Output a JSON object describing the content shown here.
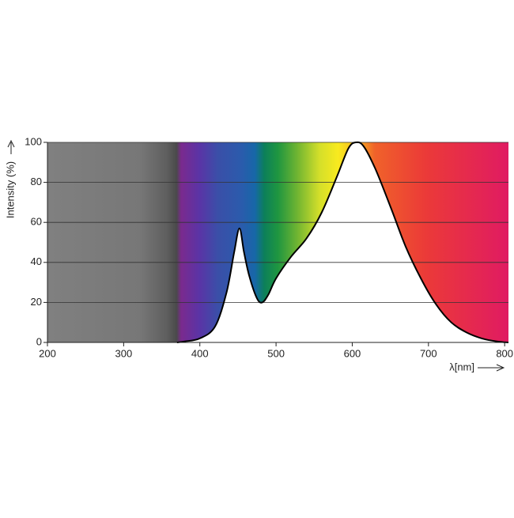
{
  "chart_data": {
    "type": "line",
    "x_label": "λ[nm]",
    "y_label": "Intensity (%)",
    "x": [
      370,
      380,
      400,
      420,
      435,
      445,
      452,
      458,
      465,
      475,
      482,
      490,
      500,
      520,
      540,
      560,
      580,
      595,
      605,
      615,
      630,
      650,
      670,
      690,
      710,
      730,
      750,
      770,
      790,
      805
    ],
    "values": [
      0,
      0.5,
      2,
      8,
      25,
      45,
      57,
      45,
      33,
      22,
      20,
      24,
      32,
      43,
      52,
      65,
      83,
      97,
      100,
      98,
      87,
      68,
      48,
      32,
      19,
      10,
      5,
      2,
      0.5,
      0
    ],
    "color": "#000000",
    "xlim": [
      200,
      805
    ],
    "ylim": [
      0,
      100
    ],
    "xticks": [
      200,
      300,
      400,
      500,
      600,
      700,
      800
    ],
    "yticks": [
      0,
      20,
      40,
      60,
      80,
      100
    ],
    "grid": true
  }
}
